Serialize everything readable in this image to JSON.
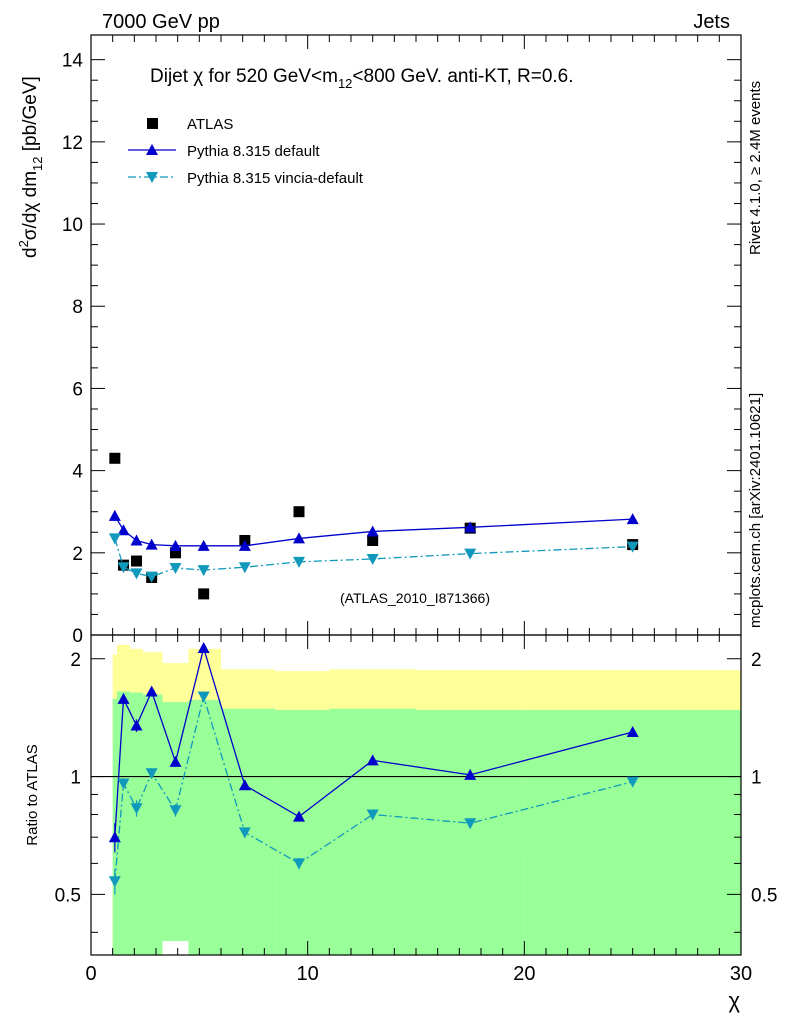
{
  "header": {
    "left": "7000 GeV pp",
    "right": "Jets",
    "side_top": "Rivet 4.1.0, ≥ 2.4M events",
    "side_bottom": "mcplots.cern.ch [arXiv:2401.10621]"
  },
  "chart_data": [
    {
      "type": "scatter",
      "panel": "main",
      "title": "Dijet χ for 520 GeV<m12<800 GeV.  anti-KT, R=0.6.",
      "title_parts": {
        "pre": "Dijet ",
        "chi": "χ",
        "mid": " for 520 GeV<m",
        "sub": "12",
        "post": "<800 GeV.  anti-KT, R=0.6."
      },
      "ylabel": "d²σ/dχ dm12 [pb/GeV]",
      "ylabel_parts": {
        "d1": "d",
        "sup": "2",
        "mid": "σ/dχ dm",
        "sub": "12",
        "post": " [pb/GeV]"
      },
      "xlim": [
        0,
        30
      ],
      "ylim": [
        0,
        14.6
      ],
      "y_ticks": [
        0,
        2,
        4,
        6,
        8,
        10,
        12,
        14
      ],
      "watermark": "(ATLAS_2010_I871366)",
      "legend_position": "top-left",
      "series": [
        {
          "name": "ATLAS",
          "style": "data",
          "color": "#000000",
          "marker": "square",
          "x": [
            1.1,
            1.5,
            2.1,
            2.8,
            3.9,
            5.2,
            7.1,
            9.6,
            13.0,
            17.5,
            25.0
          ],
          "y": [
            4.3,
            1.7,
            1.8,
            1.4,
            2.0,
            1.0,
            2.3,
            3.0,
            2.3,
            2.6,
            2.2
          ]
        },
        {
          "name": "Pythia 8.315 default",
          "style": "solid",
          "color": "#0000cc",
          "marker": "triangle-up",
          "x": [
            1.1,
            1.5,
            2.1,
            2.8,
            3.9,
            5.2,
            7.1,
            9.6,
            13.0,
            17.5,
            25.0
          ],
          "y": [
            2.9,
            2.55,
            2.3,
            2.2,
            2.17,
            2.17,
            2.17,
            2.35,
            2.52,
            2.62,
            2.82
          ],
          "yerr": [
            0.13,
            0.08,
            0.07,
            0.04,
            0.04,
            0.04,
            0.04,
            0.04,
            0.04,
            0.04,
            0.04
          ]
        },
        {
          "name": "Pythia 8.315 vincia-default",
          "style": "dashdot",
          "color": "#1199bb",
          "marker": "triangle-down",
          "x": [
            1.1,
            1.5,
            2.1,
            2.8,
            3.9,
            5.2,
            7.1,
            9.6,
            13.0,
            17.5,
            25.0
          ],
          "y": [
            2.35,
            1.65,
            1.5,
            1.42,
            1.63,
            1.58,
            1.65,
            1.78,
            1.85,
            1.98,
            2.15
          ],
          "yerr": [
            0.09,
            0.05,
            0.05,
            0.04,
            0.04,
            0.04,
            0.04,
            0.04,
            0.04,
            0.04,
            0.04
          ]
        }
      ]
    },
    {
      "type": "line",
      "panel": "ratio",
      "ylabel": "Ratio to ATLAS",
      "xlabel": "χ",
      "xlim": [
        0,
        30
      ],
      "ylim": [
        0.35,
        2.3
      ],
      "x_ticks": [
        0,
        10,
        20,
        30
      ],
      "y_ticks": [
        0.5,
        1,
        2
      ],
      "reference_line": 1,
      "bands": [
        {
          "name": "outer",
          "color": "#ffff99",
          "bins": [
            [
              1.0,
              1.2,
              0.35,
              2.05
            ],
            [
              1.2,
              1.8,
              0.35,
              2.17
            ],
            [
              1.8,
              2.4,
              0.38,
              2.12
            ],
            [
              2.4,
              3.3,
              0.43,
              2.08
            ],
            [
              3.3,
              4.5,
              0.55,
              1.95
            ],
            [
              4.5,
              6.0,
              0.44,
              2.12
            ],
            [
              6.0,
              8.5,
              0.6,
              1.88
            ],
            [
              8.5,
              11.0,
              0.59,
              1.86
            ],
            [
              11.0,
              15.0,
              0.62,
              1.88
            ],
            [
              15.0,
              20.0,
              0.61,
              1.87
            ],
            [
              20.0,
              30.0,
              0.62,
              1.87
            ]
          ]
        },
        {
          "name": "inner",
          "color": "#99ff99",
          "bins": [
            [
              1.0,
              1.2,
              0.35,
              1.58
            ],
            [
              1.2,
              1.8,
              0.35,
              1.65
            ],
            [
              1.8,
              2.4,
              0.35,
              1.64
            ],
            [
              2.4,
              3.3,
              0.35,
              1.62
            ],
            [
              3.3,
              4.5,
              0.38,
              1.55
            ],
            [
              4.5,
              6.0,
              0.35,
              1.57
            ],
            [
              6.0,
              8.5,
              0.35,
              1.49
            ],
            [
              8.5,
              11.0,
              0.35,
              1.48
            ],
            [
              11.0,
              15.0,
              0.35,
              1.49
            ],
            [
              15.0,
              20.0,
              0.35,
              1.48
            ],
            [
              20.0,
              30.0,
              0.35,
              1.48
            ]
          ]
        }
      ],
      "series": [
        {
          "name": "Pythia 8.315 default",
          "style": "solid",
          "color": "#0000cc",
          "marker": "triangle-up",
          "x": [
            1.1,
            1.5,
            2.1,
            2.8,
            3.9,
            5.2,
            7.1,
            9.6,
            13.0,
            17.5,
            25.0
          ],
          "y": [
            0.7,
            1.58,
            1.35,
            1.65,
            1.09,
            2.13,
            0.95,
            0.79,
            1.1,
            1.01,
            1.3
          ],
          "yerr": [
            0.06,
            0.05,
            0.05,
            0.04,
            0.03,
            0.06,
            0.02,
            0.02,
            0.02,
            0.02,
            0.02
          ]
        },
        {
          "name": "Pythia 8.315 vincia-default",
          "style": "dashdot",
          "color": "#1199bb",
          "marker": "triangle-down",
          "x": [
            1.1,
            1.5,
            2.1,
            2.8,
            3.9,
            5.2,
            7.1,
            9.6,
            13.0,
            17.5,
            25.0
          ],
          "y": [
            0.54,
            0.96,
            0.83,
            1.02,
            0.82,
            1.6,
            0.72,
            0.6,
            0.8,
            0.76,
            0.97
          ],
          "yerr": [
            0.04,
            0.03,
            0.04,
            0.03,
            0.03,
            0.05,
            0.02,
            0.02,
            0.02,
            0.02,
            0.02
          ]
        }
      ]
    }
  ]
}
